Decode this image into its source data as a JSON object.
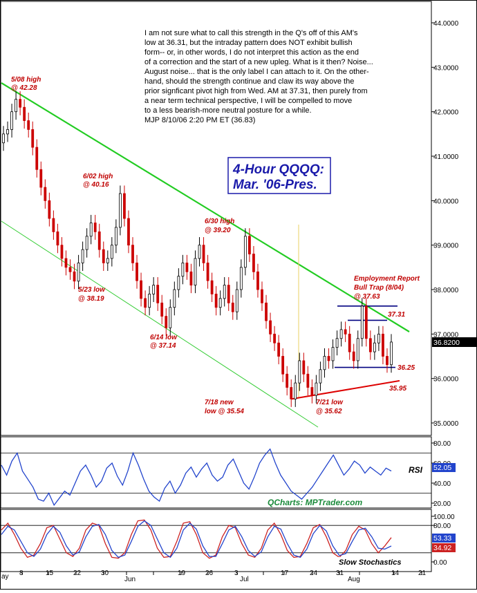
{
  "chart_data": [
    {
      "type": "candlestick",
      "panel": "price",
      "title": "4-Hour QQQQ:",
      "subtitle": "Mar. '06-Pres.",
      "ylim": [
        34.7,
        44.4
      ],
      "y_ticks": [
        "35.0000",
        "36.0000",
        "37.0000",
        "38.0000",
        "39.0000",
        "40.0000",
        "41.0000",
        "42.0000",
        "43.0000",
        "44.0000"
      ],
      "last_price_label": "36.8200",
      "commentary": [
        "I am not sure what to call this strength in the Q's off of this AM's",
        "low at 36.31, but the intraday pattern does NOT exhibit bullish",
        "form-- or, in other words, I do not interpret this action as the end",
        "of a correction and the start of a new upleg. What is it then?  Noise...",
        "August noise... that is the only label I can attach to it. On the other-",
        "hand, should the strength continue and claw its way above the",
        "prior signficant pivot high from Wed. AM at 37.31, then purely from",
        "a near term technical perspective, I will be compelled to move",
        "to a less bearish-more neutral posture for a while.",
        "MJP  8/10/06  2:20 PM ET (36.83)"
      ],
      "annotations": [
        {
          "line1": "5/08 high",
          "line2": "@ 42.28"
        },
        {
          "line1": "6/02 high",
          "line2": "@ 40.16"
        },
        {
          "line1": "5/23 low",
          "line2": "@ 38.19"
        },
        {
          "line1": "6/14 low",
          "line2": "@ 37.14"
        },
        {
          "line1": "6/30 high",
          "line2": "@ 39.20"
        },
        {
          "line1": "7/18 new",
          "line2": "low @ 35.54"
        },
        {
          "line1": "7/21 low",
          "line2": "@ 35.62"
        },
        {
          "line1": "Employment Report",
          "line2": "Bull Trap (8/04)",
          "line3": "@ 37.63"
        }
      ],
      "level_labels": [
        "37.31",
        "36.25",
        "35.95"
      ],
      "close_series": [
        41.5,
        41.6,
        42.0,
        42.28,
        42.1,
        41.8,
        41.6,
        41.2,
        40.7,
        40.3,
        40.0,
        39.6,
        39.3,
        39.0,
        38.7,
        38.5,
        38.4,
        38.19,
        38.6,
        38.9,
        39.2,
        39.5,
        39.3,
        38.9,
        38.6,
        38.7,
        39.0,
        39.4,
        40.16,
        39.6,
        39.0,
        38.6,
        38.2,
        37.8,
        37.6,
        37.9,
        38.1,
        37.7,
        37.4,
        37.14,
        37.6,
        38.0,
        38.3,
        38.6,
        38.4,
        38.1,
        38.7,
        39.0,
        38.6,
        38.2,
        37.9,
        37.6,
        37.8,
        38.1,
        37.7,
        37.5,
        38.0,
        38.5,
        39.2,
        38.8,
        38.4,
        38.0,
        37.7,
        37.3,
        37.0,
        36.8,
        36.5,
        36.1,
        35.8,
        35.54,
        35.9,
        36.4,
        36.1,
        35.8,
        35.62,
        35.9,
        36.2,
        36.5,
        36.4,
        36.7,
        36.9,
        37.1,
        37.0,
        36.6,
        36.4,
        36.9,
        37.63,
        36.9,
        36.6,
        36.8,
        37.0,
        36.5,
        36.31,
        36.82
      ]
    },
    {
      "type": "line",
      "panel": "rsi",
      "label": "RSI",
      "ylim": [
        0,
        100
      ],
      "y_ticks": [
        "80.00",
        "60.00",
        "40.00",
        "20.00"
      ],
      "last_value_label": "52.05",
      "guides": [
        70,
        30
      ],
      "values": [
        58,
        48,
        62,
        70,
        52,
        44,
        36,
        24,
        22,
        30,
        18,
        25,
        32,
        28,
        40,
        52,
        58,
        48,
        36,
        42,
        55,
        60,
        47,
        38,
        52,
        70,
        58,
        44,
        32,
        26,
        22,
        35,
        42,
        30,
        38,
        50,
        56,
        46,
        54,
        60,
        48,
        42,
        46,
        58,
        64,
        52,
        40,
        34,
        46,
        60,
        68,
        74,
        60,
        48,
        40,
        32,
        28,
        24,
        30,
        36,
        44,
        52,
        60,
        68,
        58,
        48,
        54,
        62,
        58,
        50,
        56,
        52,
        48,
        55,
        52.05
      ]
    },
    {
      "type": "line",
      "panel": "stochastics",
      "label": "Slow Stochastics",
      "ylim": [
        0,
        100
      ],
      "y_ticks": [
        "100.00",
        "80.00",
        "0.00"
      ],
      "series": [
        {
          "label": "53.33",
          "values": [
            70,
            85,
            60,
            30,
            10,
            15,
            40,
            75,
            80,
            50,
            20,
            12,
            30,
            70,
            85,
            80,
            40,
            10,
            8,
            20,
            60,
            90,
            92,
            70,
            30,
            10,
            12,
            45,
            85,
            88,
            60,
            20,
            8,
            15,
            55,
            80,
            75,
            40,
            15,
            10,
            30,
            70,
            85,
            60,
            25,
            10,
            12,
            40,
            75,
            82,
            55,
            20,
            10,
            25,
            60,
            78,
            70,
            40,
            20,
            35,
            53.33
          ]
        },
        {
          "label": "34.92",
          "values": [
            60,
            78,
            70,
            45,
            20,
            12,
            28,
            60,
            78,
            65,
            35,
            15,
            22,
            55,
            78,
            82,
            60,
            25,
            10,
            15,
            45,
            78,
            90,
            80,
            50,
            20,
            10,
            30,
            70,
            85,
            72,
            35,
            12,
            12,
            40,
            70,
            78,
            55,
            25,
            12,
            22,
            55,
            78,
            72,
            40,
            15,
            10,
            28,
            62,
            80,
            68,
            35,
            14,
            18,
            45,
            70,
            74,
            55,
            30,
            28,
            34.92
          ]
        }
      ]
    }
  ],
  "x_axis": {
    "labels": [
      "ay",
      "8",
      "15",
      "22",
      "30",
      "Jun",
      "19",
      "26",
      "3",
      "Jul",
      "17",
      "24",
      "31",
      "Aug",
      "14",
      "21"
    ],
    "ticks": [
      "8",
      "15",
      "22",
      "30",
      "5",
      "12",
      "19",
      "26",
      "3",
      "10",
      "17",
      "24",
      "31",
      "7",
      "14",
      "21"
    ],
    "months": [
      "ay",
      "Jun",
      "Jul",
      "Aug"
    ]
  },
  "watermark": "QCharts: MPTrader.com",
  "colors": {
    "up": "#000000",
    "down": "#cc0000",
    "channel_top": "#22cc22",
    "channel_bottom": "#33cc33",
    "level": "#000080",
    "support": "#dd0000",
    "title": "#1a1aaa",
    "rsi": "#2244cc",
    "stoch_k": "#cc2222",
    "stoch_d": "#2244cc",
    "vline": "#e8d060"
  }
}
